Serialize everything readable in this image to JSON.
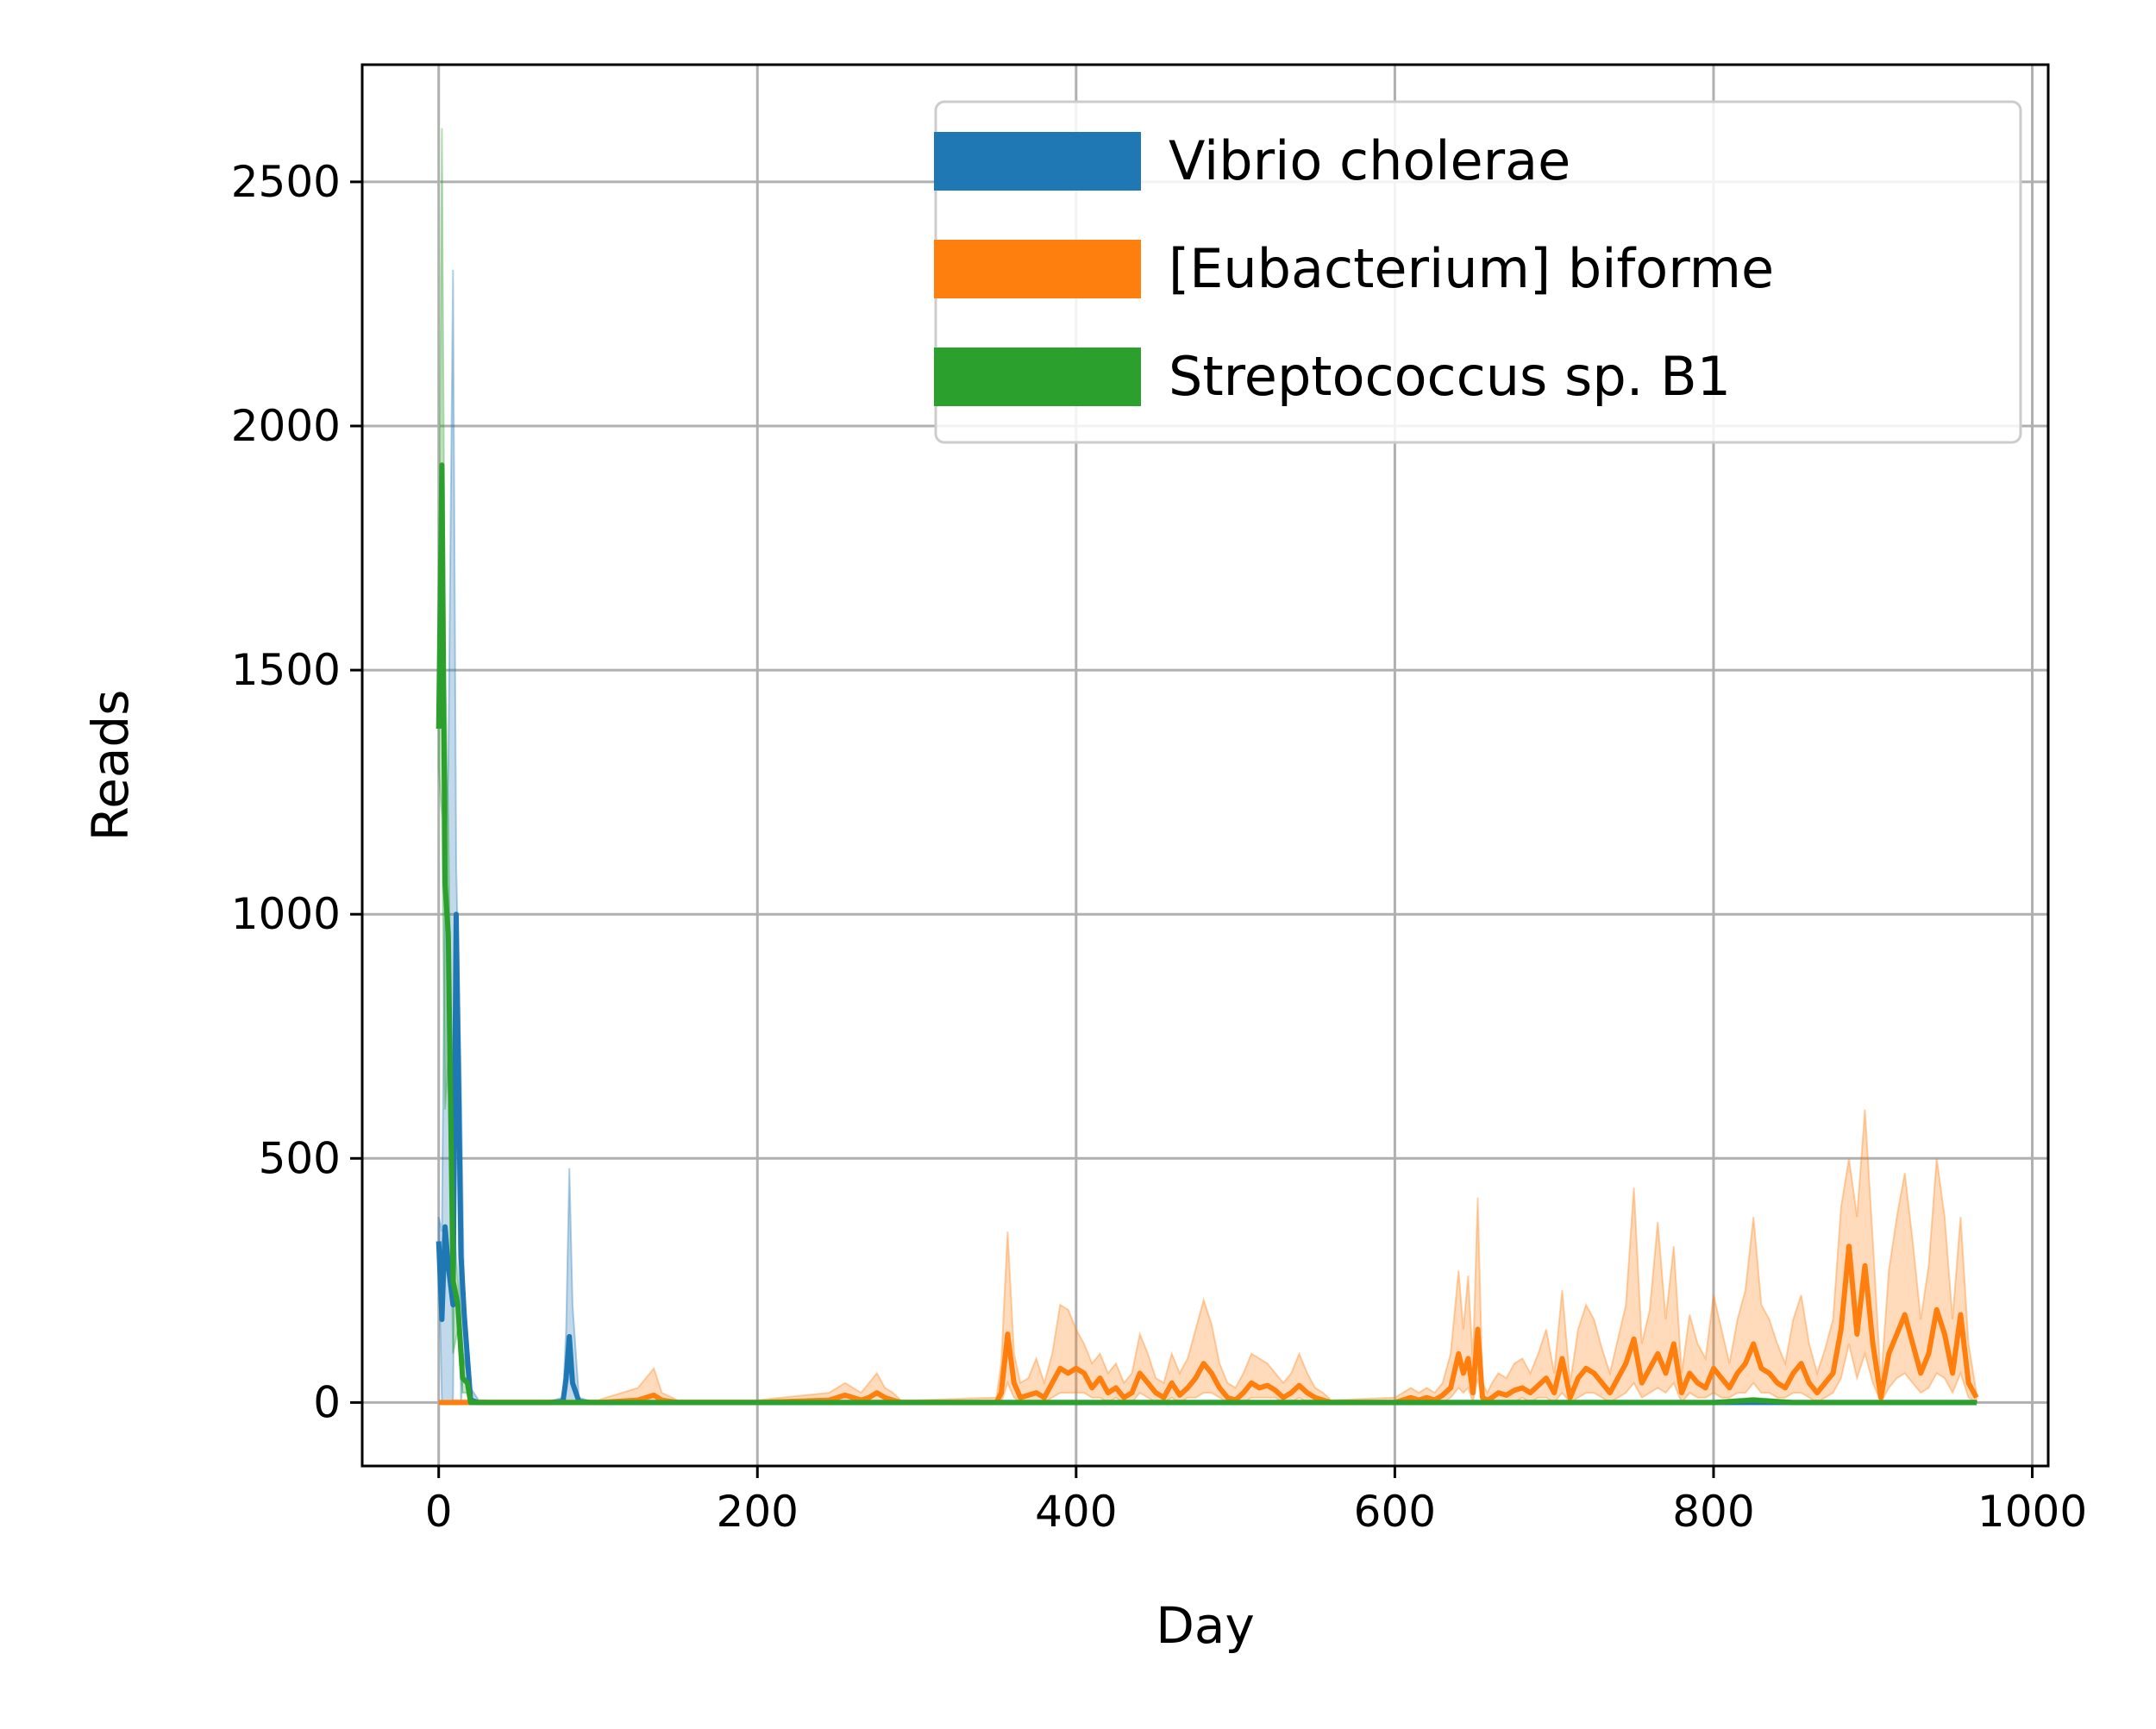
{
  "chart_data": {
    "type": "line",
    "title": "",
    "xlabel": "Day",
    "ylabel": "Reads",
    "xlim": [
      -48,
      1010
    ],
    "ylim": [
      -130,
      2740
    ],
    "x_ticks": [
      0,
      200,
      400,
      600,
      800,
      1000
    ],
    "y_ticks": [
      0,
      500,
      1000,
      1500,
      2000,
      2500
    ],
    "grid": true,
    "legend_position": "top-right",
    "series": [
      {
        "name": "Vibrio cholerae",
        "color": "#1f77b4",
        "x": [
          0,
          2,
          4,
          6,
          9,
          11,
          14,
          16,
          20,
          25,
          35,
          50,
          60,
          70,
          78,
          80,
          82,
          84,
          88,
          95,
          120,
          150,
          200,
          300,
          400,
          500,
          600,
          700,
          800,
          900,
          965
        ],
        "y": [
          330,
          170,
          360,
          280,
          200,
          1000,
          300,
          180,
          5,
          0,
          0,
          0,
          0,
          0,
          2,
          50,
          135,
          40,
          2,
          0,
          0,
          0,
          0,
          0,
          0,
          0,
          0,
          0,
          0,
          0,
          0
        ],
        "upper": [
          380,
          350,
          1100,
          1300,
          2320,
          1100,
          650,
          200,
          30,
          5,
          3,
          3,
          3,
          3,
          10,
          150,
          480,
          200,
          10,
          3,
          3,
          3,
          3,
          3,
          3,
          3,
          3,
          3,
          3,
          3,
          3
        ],
        "lower": [
          300,
          0,
          0,
          0,
          0,
          700,
          0,
          100,
          0,
          0,
          0,
          0,
          0,
          0,
          0,
          0,
          0,
          0,
          0,
          0,
          0,
          0,
          0,
          0,
          0,
          0,
          0,
          0,
          0,
          0,
          0
        ]
      },
      {
        "name": "[Eubacterium] biforme",
        "color": "#ff7f0e",
        "x": [
          0,
          10,
          20,
          50,
          100,
          125,
          130,
          135,
          140,
          150,
          200,
          245,
          250,
          255,
          265,
          270,
          275,
          280,
          285,
          290,
          300,
          350,
          353,
          357,
          361,
          365,
          370,
          375,
          380,
          385,
          390,
          395,
          400,
          405,
          410,
          415,
          420,
          425,
          430,
          435,
          440,
          445,
          450,
          455,
          460,
          465,
          470,
          475,
          480,
          485,
          490,
          495,
          500,
          505,
          510,
          515,
          520,
          525,
          530,
          535,
          540,
          545,
          550,
          555,
          560,
          600,
          605,
          610,
          615,
          620,
          625,
          630,
          635,
          640,
          643,
          646,
          649,
          652,
          655,
          658,
          661,
          665,
          670,
          675,
          680,
          685,
          690,
          695,
          700,
          705,
          710,
          715,
          720,
          725,
          730,
          735,
          740,
          745,
          750,
          755,
          760,
          765,
          770,
          775,
          780,
          785,
          790,
          795,
          800,
          805,
          810,
          815,
          820,
          825,
          830,
          835,
          840,
          845,
          850,
          855,
          860,
          865,
          870,
          875,
          880,
          885,
          890,
          895,
          900,
          905,
          910,
          915,
          920,
          925,
          930,
          935,
          940,
          945,
          950,
          955,
          960,
          965
        ],
        "y": [
          0,
          0,
          0,
          0,
          0,
          5,
          10,
          15,
          5,
          0,
          0,
          5,
          10,
          15,
          5,
          10,
          20,
          10,
          5,
          0,
          0,
          0,
          20,
          140,
          40,
          10,
          15,
          20,
          10,
          40,
          70,
          60,
          70,
          60,
          30,
          50,
          20,
          30,
          10,
          20,
          60,
          40,
          20,
          10,
          40,
          15,
          30,
          50,
          80,
          60,
          30,
          10,
          5,
          20,
          40,
          30,
          35,
          25,
          10,
          20,
          35,
          20,
          10,
          5,
          0,
          0,
          5,
          10,
          5,
          10,
          5,
          15,
          30,
          100,
          60,
          90,
          20,
          150,
          10,
          5,
          10,
          20,
          15,
          25,
          30,
          20,
          35,
          50,
          20,
          90,
          10,
          50,
          70,
          60,
          40,
          20,
          50,
          80,
          130,
          40,
          70,
          100,
          60,
          120,
          20,
          60,
          40,
          30,
          70,
          50,
          30,
          60,
          80,
          120,
          70,
          60,
          40,
          30,
          60,
          80,
          40,
          20,
          40,
          60,
          150,
          320,
          140,
          280,
          120,
          10,
          100,
          140,
          180,
          120,
          60,
          100,
          190,
          140,
          60,
          180,
          40,
          10
        ],
        "upper": [
          0,
          5,
          5,
          5,
          5,
          30,
          50,
          70,
          20,
          5,
          5,
          20,
          30,
          40,
          20,
          40,
          60,
          30,
          20,
          5,
          5,
          10,
          80,
          350,
          100,
          40,
          50,
          90,
          40,
          100,
          200,
          190,
          150,
          120,
          80,
          100,
          60,
          80,
          40,
          60,
          140,
          100,
          50,
          40,
          100,
          60,
          90,
          150,
          210,
          160,
          80,
          40,
          30,
          60,
          100,
          90,
          80,
          60,
          40,
          60,
          100,
          60,
          30,
          20,
          5,
          10,
          20,
          30,
          20,
          30,
          20,
          40,
          100,
          270,
          150,
          260,
          80,
          420,
          40,
          20,
          40,
          60,
          50,
          80,
          90,
          60,
          100,
          150,
          60,
          230,
          40,
          150,
          200,
          170,
          110,
          60,
          130,
          200,
          440,
          120,
          190,
          370,
          170,
          320,
          60,
          180,
          120,
          90,
          220,
          150,
          80,
          170,
          230,
          380,
          200,
          170,
          120,
          80,
          170,
          220,
          120,
          60,
          110,
          170,
          400,
          500,
          380,
          600,
          330,
          40,
          270,
          380,
          470,
          330,
          170,
          280,
          500,
          380,
          170,
          380,
          120,
          20
        ],
        "lower": [
          0,
          0,
          0,
          0,
          0,
          0,
          0,
          0,
          0,
          0,
          0,
          0,
          0,
          0,
          0,
          0,
          0,
          0,
          0,
          0,
          0,
          0,
          0,
          40,
          10,
          0,
          0,
          0,
          0,
          10,
          20,
          20,
          20,
          20,
          10,
          10,
          0,
          10,
          0,
          0,
          20,
          10,
          0,
          0,
          10,
          0,
          10,
          10,
          20,
          20,
          10,
          0,
          0,
          0,
          10,
          10,
          10,
          10,
          0,
          0,
          10,
          0,
          0,
          0,
          0,
          0,
          0,
          0,
          0,
          0,
          0,
          0,
          10,
          30,
          20,
          30,
          0,
          50,
          0,
          0,
          0,
          0,
          0,
          0,
          10,
          0,
          10,
          10,
          0,
          20,
          0,
          10,
          20,
          20,
          10,
          0,
          10,
          20,
          40,
          10,
          20,
          30,
          20,
          40,
          0,
          20,
          10,
          10,
          20,
          10,
          10,
          20,
          20,
          40,
          20,
          20,
          10,
          10,
          20,
          20,
          10,
          0,
          10,
          20,
          50,
          120,
          50,
          100,
          40,
          0,
          30,
          50,
          60,
          40,
          20,
          30,
          60,
          50,
          20,
          60,
          10,
          0
        ]
      },
      {
        "name": "Streptococcus sp. B1",
        "color": "#2ca02c",
        "x": [
          0,
          2,
          4,
          6,
          9,
          12,
          15,
          18,
          20,
          25,
          50,
          100,
          200,
          300,
          400,
          500,
          600,
          700,
          800,
          825,
          850,
          900,
          965
        ],
        "y": [
          1380,
          1920,
          1060,
          960,
          250,
          200,
          50,
          40,
          0,
          0,
          0,
          0,
          0,
          0,
          0,
          0,
          0,
          0,
          0,
          5,
          0,
          0,
          0
        ],
        "upper": [
          1450,
          2610,
          1500,
          1200,
          400,
          250,
          100,
          60,
          5,
          3,
          3,
          3,
          3,
          3,
          3,
          3,
          3,
          3,
          3,
          10,
          3,
          3,
          3
        ],
        "lower": [
          1300,
          1200,
          600,
          700,
          100,
          150,
          20,
          20,
          0,
          0,
          0,
          0,
          0,
          0,
          0,
          0,
          0,
          0,
          0,
          0,
          0,
          0,
          0
        ]
      }
    ]
  }
}
